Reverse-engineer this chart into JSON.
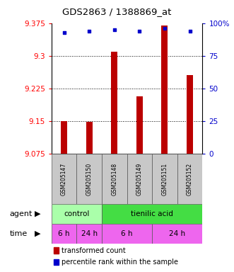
{
  "title": "GDS2863 / 1388869_at",
  "samples": [
    "GSM205147",
    "GSM205150",
    "GSM205148",
    "GSM205149",
    "GSM205151",
    "GSM205152"
  ],
  "bar_values": [
    9.15,
    9.148,
    9.31,
    9.207,
    9.37,
    9.255
  ],
  "percentile_values": [
    93,
    94,
    95,
    94,
    96,
    94
  ],
  "ymin": 9.075,
  "ymax": 9.375,
  "yticks": [
    9.075,
    9.15,
    9.225,
    9.3,
    9.375
  ],
  "ytick_labels": [
    "9.075",
    "9.15",
    "9.225",
    "9.3",
    "9.375"
  ],
  "right_yticks": [
    0,
    25,
    50,
    75,
    100
  ],
  "right_ytick_labels": [
    "0",
    "25",
    "50",
    "75",
    "100%"
  ],
  "bar_color": "#bb0000",
  "dot_color": "#0000cc",
  "agent_control_label": "control",
  "agent_tienilic_label": "tienilic acid",
  "agent_control_color": "#aaffaa",
  "agent_tienilic_color": "#44dd44",
  "time_color": "#ee66ee",
  "legend_bar_label": "transformed count",
  "legend_dot_label": "percentile rank within the sample",
  "background_color": "#ffffff"
}
